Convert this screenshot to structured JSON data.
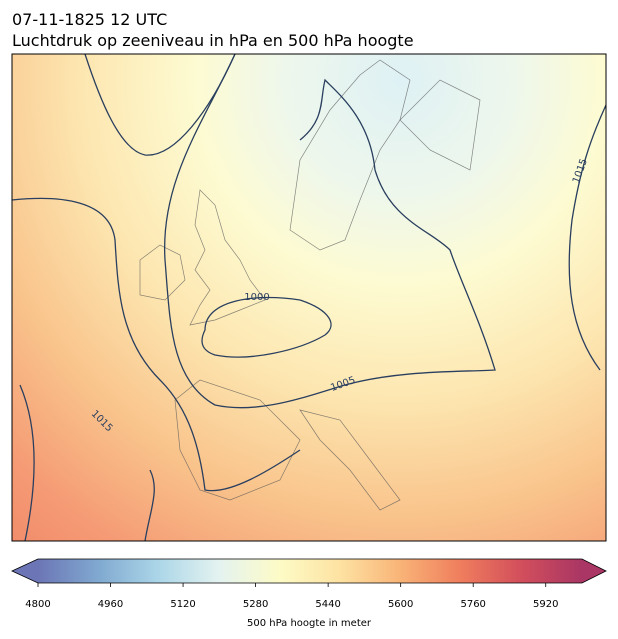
{
  "title": [
    "07-11-1825 12 UTC",
    "Luchtdruk op zeeniveau in hPa en 500 hPa hoogte"
  ],
  "contour_labels": [
    1000,
    1005,
    1015,
    1015
  ],
  "colorbar": {
    "range": [
      4800,
      6000
    ],
    "ticks": [
      4800,
      4960,
      5120,
      5280,
      5440,
      5600,
      5760,
      5920
    ],
    "label": "500 hPa hoogte in meter",
    "colors": [
      "#6c76b6",
      "#80a9d0",
      "#acd6e8",
      "#e4f3f0",
      "#fdfbc6",
      "#fde2a2",
      "#f9b377",
      "#ef7d5d",
      "#d24e5c",
      "#a93664"
    ]
  }
}
